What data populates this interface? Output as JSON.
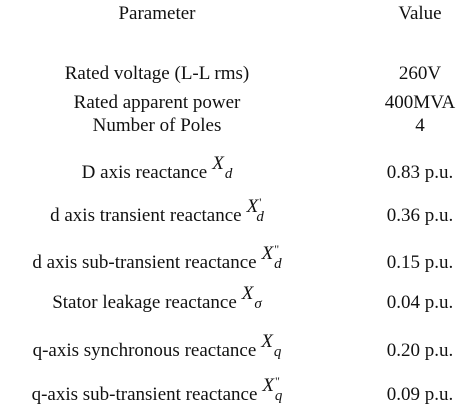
{
  "table": {
    "header": [
      "Parameter",
      "Value"
    ],
    "rows": [
      {
        "parameter": "Rated voltage (L-L rms)",
        "value": "260V"
      },
      {
        "parameter": "Rated apparent power",
        "value": "400MVA"
      },
      {
        "parameter": "Number of Poles",
        "value": "4"
      },
      {
        "parameter": "D axis reactance",
        "symbol": {
          "base": "X",
          "sub": "d"
        },
        "value": "0.83 p.u."
      },
      {
        "parameter": "d axis transient reactance",
        "symbol": {
          "base": "X",
          "prime": "'",
          "sub": "d"
        },
        "value": "0.36 p.u."
      },
      {
        "parameter": "d axis sub-transient reactance",
        "symbol": {
          "base": "X",
          "prime": "\"",
          "sub": "d"
        },
        "value": "0.15 p.u."
      },
      {
        "parameter": "Stator leakage reactance",
        "symbol": {
          "base": "X",
          "sub": "σ"
        },
        "value": "0.04 p.u."
      },
      {
        "parameter": "q-axis synchronous reactance",
        "symbol": {
          "base": "X",
          "sub": "q"
        },
        "value": "0.20 p.u."
      },
      {
        "parameter": "q-axis sub-transient reactance",
        "symbol": {
          "base": "X",
          "prime": "\"",
          "sub": "q"
        },
        "value": "0.09 p.u."
      }
    ]
  }
}
